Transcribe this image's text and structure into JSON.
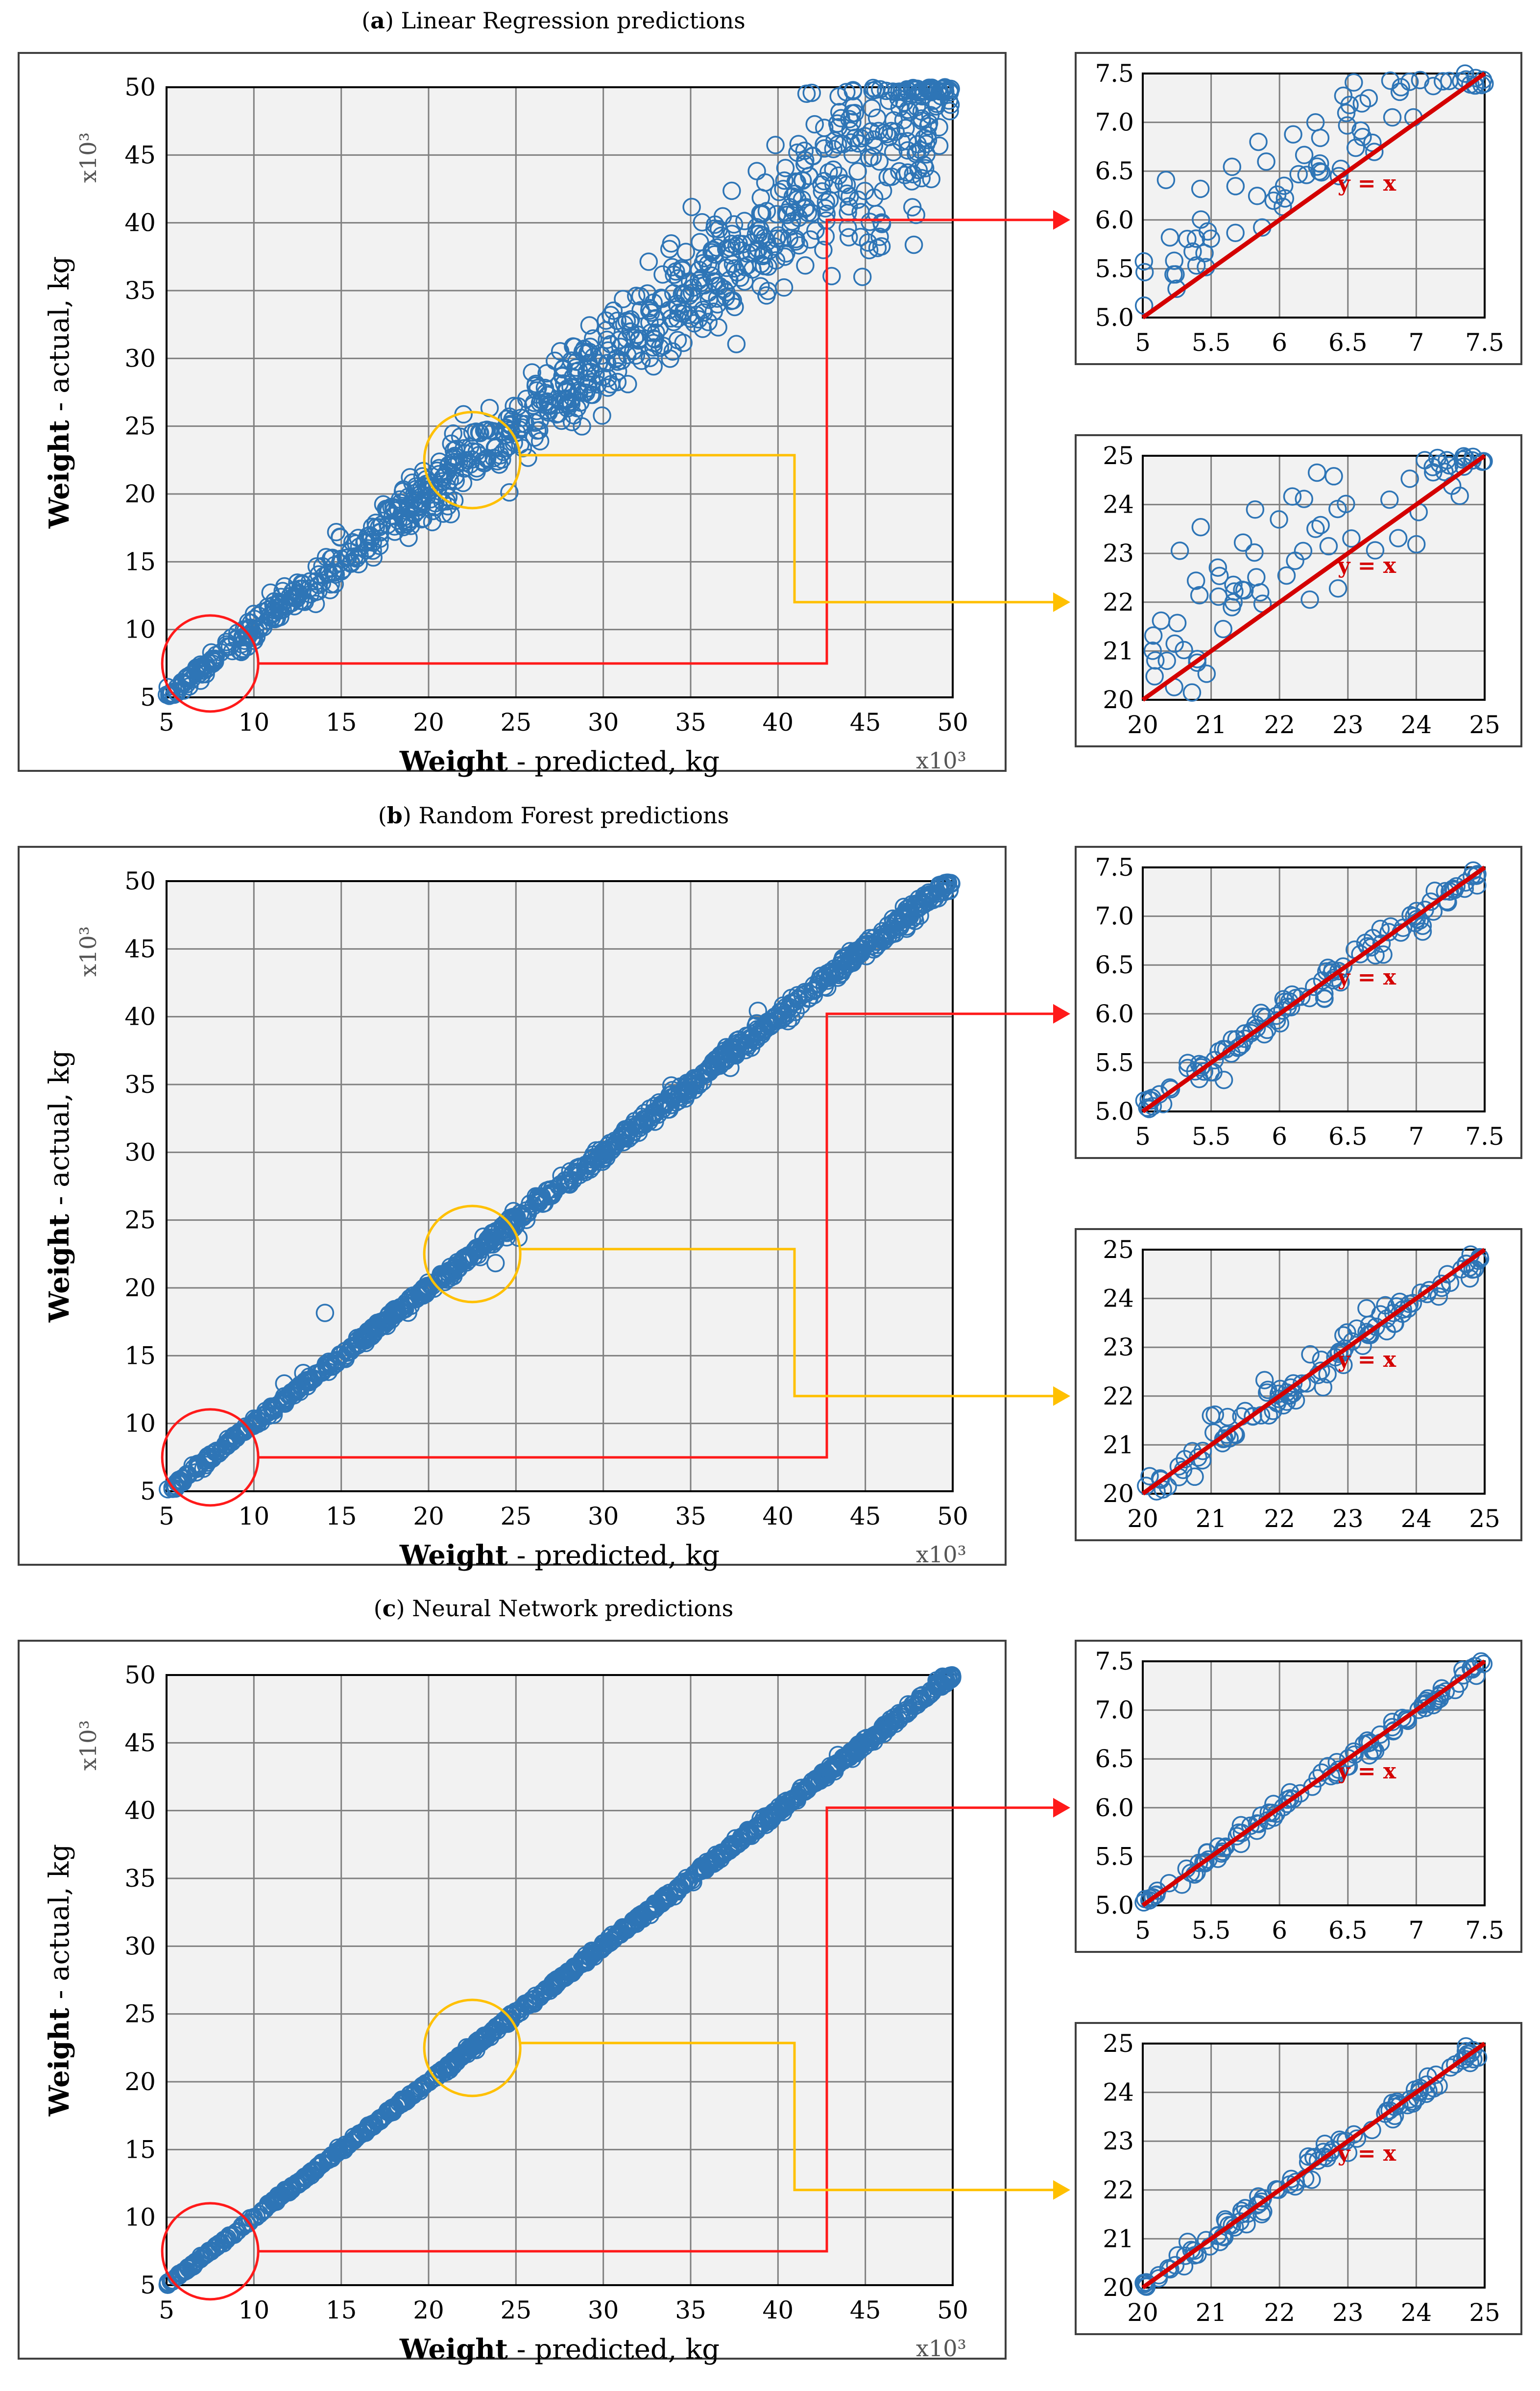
{
  "figure": {
    "colors": {
      "point": "#2e75b6",
      "identity": "#d40000",
      "red_connector": "#ff1a1a",
      "yellow_connector": "#ffc000",
      "grid": "#808080",
      "plot_bg": "#f2f2f2",
      "frame": "#404040"
    },
    "main": {
      "x_label_bold": "Weight",
      "x_label_rest": " - predicted, kg",
      "y_label_bold": "Weight",
      "y_label_rest": " - actual, kg",
      "x_multiplier": "x10³",
      "y_multiplier": "x10³",
      "range": [
        5,
        50
      ],
      "ticks": [
        5,
        10,
        15,
        20,
        25,
        30,
        35,
        40,
        45,
        50
      ]
    },
    "inset_top": {
      "range": [
        5,
        7.5
      ],
      "x_ticks": [
        "5",
        "5.5",
        "6",
        "6.5",
        "7",
        "7.5"
      ],
      "y_ticks": [
        "5.0",
        "5.5",
        "6.0",
        "6.5",
        "7.0",
        "7.5"
      ],
      "identity_label": "y = x"
    },
    "inset_bottom": {
      "range": [
        20,
        25
      ],
      "x_ticks": [
        "20",
        "21",
        "22",
        "23",
        "24",
        "25"
      ],
      "y_ticks": [
        "20",
        "21",
        "22",
        "23",
        "24",
        "25"
      ],
      "identity_label": "y = x"
    },
    "zoom_regions": [
      {
        "name": "low-range-zoom",
        "color": "red",
        "center": [
          7.5,
          7.5
        ],
        "target": "inset_top"
      },
      {
        "name": "mid-range-zoom",
        "color": "yellow",
        "center": [
          22.5,
          22.5
        ],
        "target": "inset_bottom"
      }
    ]
  },
  "chart_data": [
    {
      "type": "scatter",
      "panel": "a",
      "title_letter": "a",
      "title_rest": " Linear Regression predictions",
      "xlabel": "Weight - predicted, kg (x10³)",
      "ylabel": "Weight - actual, kg (x10³)",
      "xlim": [
        5,
        50
      ],
      "ylim": [
        5,
        50
      ],
      "spread": "wide",
      "series": [
        {
          "name": "predictions",
          "description": "points scattered around y = x, widening above ~30"
        }
      ],
      "insets": [
        {
          "xlim": [
            5,
            7.5
          ],
          "ylim": [
            5,
            7.5
          ],
          "reference_line": "y = x"
        },
        {
          "xlim": [
            20,
            25
          ],
          "ylim": [
            20,
            25
          ],
          "reference_line": "y = x"
        }
      ]
    },
    {
      "type": "scatter",
      "panel": "b",
      "title_letter": "b",
      "title_rest": " Random Forest predictions",
      "xlabel": "Weight - predicted, kg (x10³)",
      "ylabel": "Weight - actual, kg (x10³)",
      "xlim": [
        5,
        50
      ],
      "ylim": [
        5,
        50
      ],
      "spread": "narrow",
      "series": [
        {
          "name": "predictions",
          "description": "points tightly along y = x with a few outliers"
        }
      ],
      "insets": [
        {
          "xlim": [
            5,
            7.5
          ],
          "ylim": [
            5,
            7.5
          ],
          "reference_line": "y = x"
        },
        {
          "xlim": [
            20,
            25
          ],
          "ylim": [
            20,
            25
          ],
          "reference_line": "y = x"
        }
      ]
    },
    {
      "type": "scatter",
      "panel": "c",
      "title_letter": "c",
      "title_rest": " Neural Network predictions",
      "xlabel": "Weight - predicted, kg (x10³)",
      "ylabel": "Weight - actual, kg (x10³)",
      "xlim": [
        5,
        50
      ],
      "ylim": [
        5,
        50
      ],
      "spread": "tight",
      "series": [
        {
          "name": "predictions",
          "description": "points almost exactly on y = x"
        }
      ],
      "insets": [
        {
          "xlim": [
            5,
            7.5
          ],
          "ylim": [
            5,
            7.5
          ],
          "reference_line": "y = x"
        },
        {
          "xlim": [
            20,
            25
          ],
          "ylim": [
            20,
            25
          ],
          "reference_line": "y = x"
        }
      ]
    }
  ]
}
